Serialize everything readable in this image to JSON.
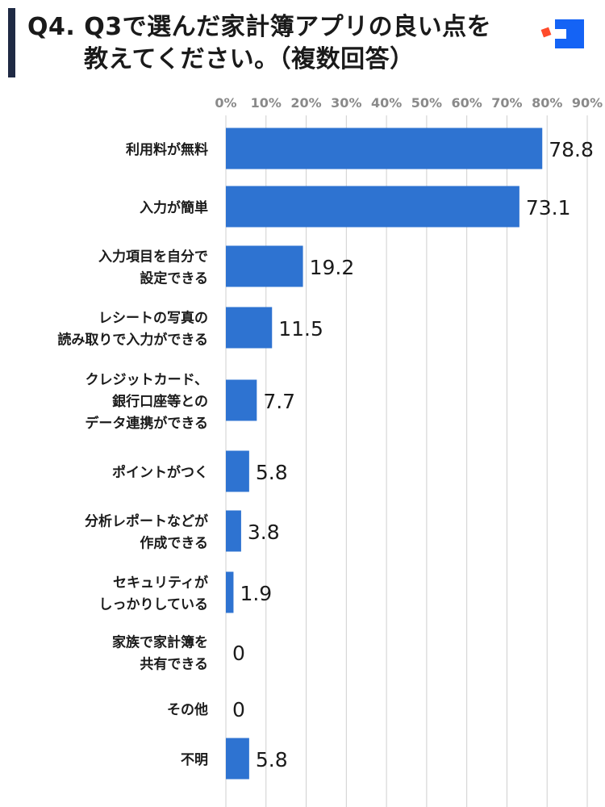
{
  "header": {
    "title_line1": "Q4. Q3で選んだ家計簿アプリの良い点を",
    "title_line2": "教えてください。（複数回答）",
    "logo_icon": "brand-logo-icon",
    "logo_colors": {
      "square": "#1463f5",
      "dot": "#ff4b2b"
    }
  },
  "chart_data": {
    "type": "bar",
    "orientation": "horizontal",
    "xlim": [
      0,
      90
    ],
    "x_ticks": [
      "0%",
      "10%",
      "20%",
      "30%",
      "40%",
      "50%",
      "60%",
      "70%",
      "80%",
      "90%"
    ],
    "tick_values": [
      0,
      10,
      20,
      30,
      40,
      50,
      60,
      70,
      80,
      90
    ],
    "grid": true,
    "bar_color": "#2e73d1",
    "categories": [
      [
        "利用料が無料"
      ],
      [
        "入力が簡単"
      ],
      [
        "入力項目を自分で",
        "設定できる"
      ],
      [
        "レシートの写真の",
        "読み取りで入力ができる"
      ],
      [
        "クレジットカード、",
        "銀行口座等との",
        "データ連携ができる"
      ],
      [
        "ポイントがつく"
      ],
      [
        "分析レポートなどが",
        "作成できる"
      ],
      [
        "セキュリティが",
        "しっかりしている"
      ],
      [
        "家族で家計簿を",
        "共有できる"
      ],
      [
        "その他"
      ],
      [
        "不明"
      ]
    ],
    "values": [
      78.8,
      73.1,
      19.2,
      11.5,
      7.7,
      5.8,
      3.8,
      1.9,
      0,
      0,
      5.8
    ],
    "value_labels": [
      "78.8",
      "73.1",
      "19.2",
      "11.5",
      "7.7",
      "5.8",
      "3.8",
      "1.9",
      "0",
      "0",
      "5.8"
    ]
  }
}
